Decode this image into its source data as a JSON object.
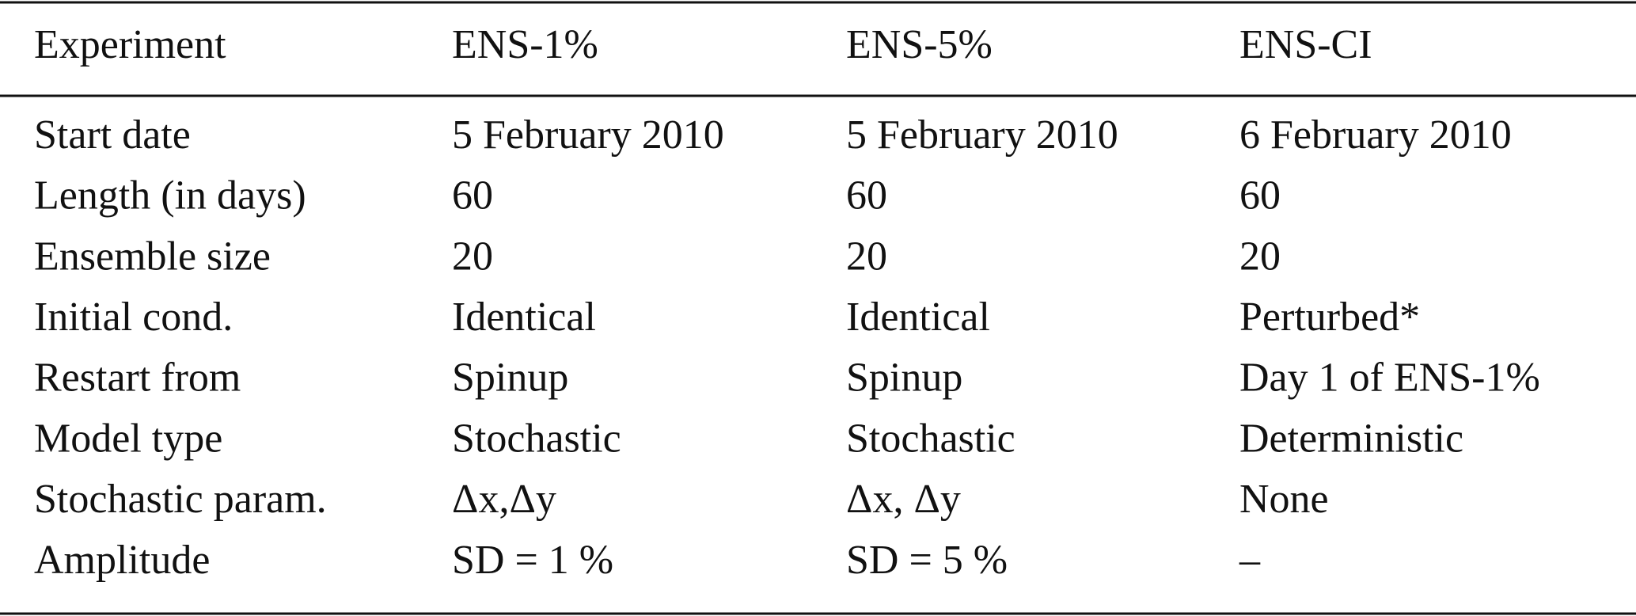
{
  "table": {
    "header": [
      "Experiment",
      "ENS-1%",
      "ENS-5%",
      "ENS-CI"
    ],
    "rows": [
      [
        "Start date",
        "5 February 2010",
        "5 February 2010",
        "6 February 2010"
      ],
      [
        "Length (in days)",
        "60",
        "60",
        "60"
      ],
      [
        "Ensemble size",
        "20",
        "20",
        "20"
      ],
      [
        "Initial cond.",
        "Identical",
        "Identical",
        "Perturbed*"
      ],
      [
        "Restart from",
        "Spinup",
        "Spinup",
        "Day 1 of ENS-1%"
      ],
      [
        "Model type",
        "Stochastic",
        "Stochastic",
        "Deterministic"
      ],
      [
        "Stochastic param.",
        "Δx,Δy",
        "Δx, Δy",
        "None"
      ],
      [
        "Amplitude",
        "SD = 1 %",
        "SD = 5 %",
        "–"
      ]
    ]
  }
}
